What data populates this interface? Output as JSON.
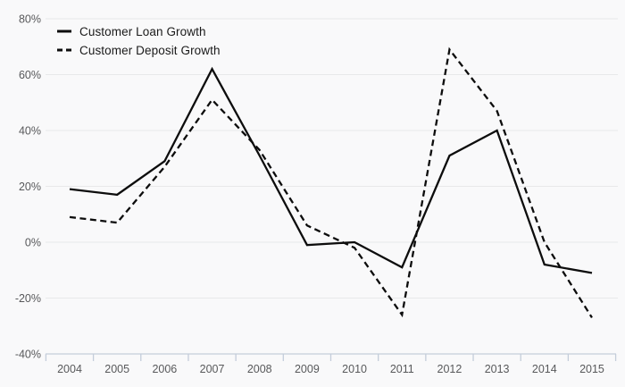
{
  "page": {
    "background": "#f9f9fa"
  },
  "chart_data": {
    "type": "line",
    "title": "",
    "xlabel": "",
    "ylabel": "",
    "x": [
      2004,
      2005,
      2006,
      2007,
      2008,
      2009,
      2010,
      2011,
      2012,
      2013,
      2014,
      2015
    ],
    "series": [
      {
        "name": "Customer Loan Growth",
        "line_style": "solid",
        "color": "#0d0d0d",
        "values": [
          19,
          17,
          29,
          62,
          31,
          -1,
          0,
          -9,
          31,
          40,
          -8,
          -11
        ]
      },
      {
        "name": "Customer Deposit Growth",
        "line_style": "dashed",
        "color": "#0d0d0d",
        "values": [
          9,
          7,
          27,
          51,
          33,
          6,
          -2,
          -26,
          69,
          47,
          0,
          -27
        ]
      }
    ],
    "ylim": [
      -40,
      80
    ],
    "yticks": [
      80,
      60,
      40,
      20,
      0,
      -20,
      -40
    ],
    "ytick_suffix": "%",
    "grid": true,
    "legend_position": "top-left",
    "colors": {
      "grid_line": "#e8e9ea",
      "axis_line": "#c4cdda",
      "tick_mark": "#c4cdda",
      "tick_label": "#58595b"
    }
  }
}
